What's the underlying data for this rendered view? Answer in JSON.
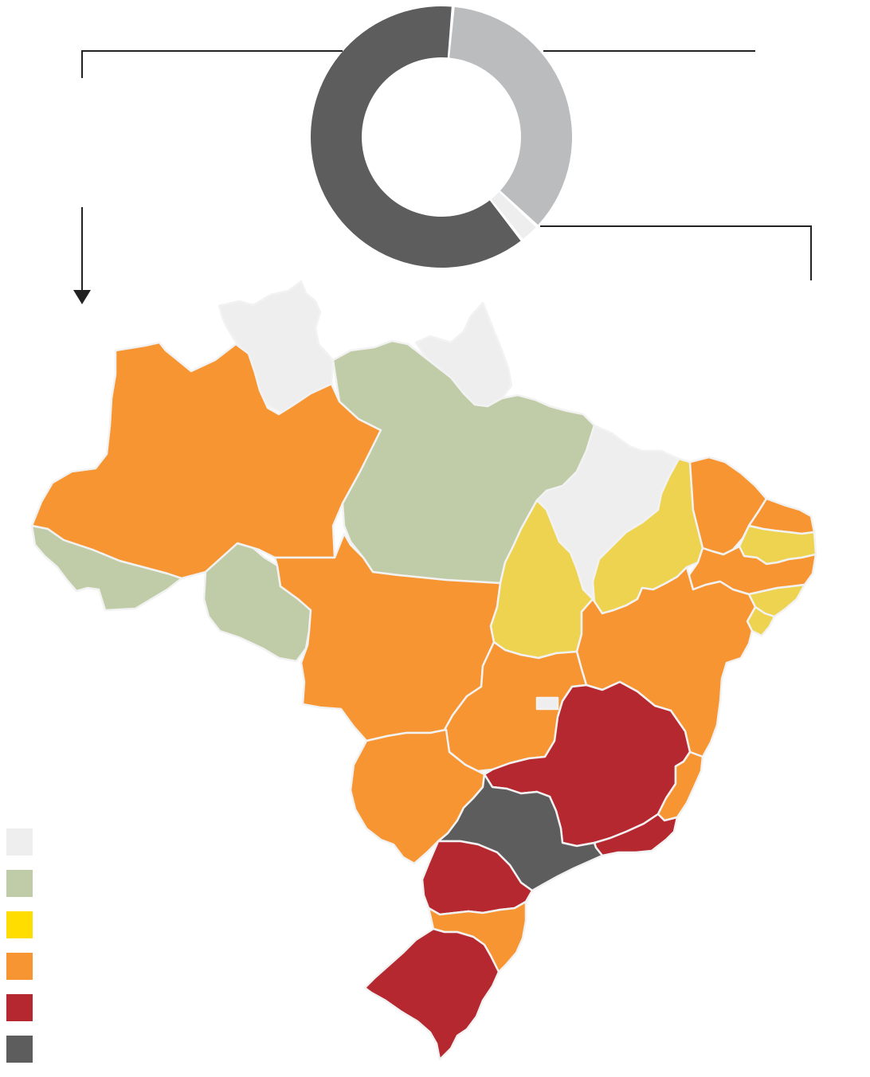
{
  "colors": {
    "background": "#ffffff",
    "state_border": "#f2f2f2",
    "connector": "#222222"
  },
  "donut": {
    "segments": [
      {
        "color": "#bbbcbe",
        "value": 35.5
      },
      {
        "color": "#eeeeee",
        "value": 2.5
      },
      {
        "color": "#5d5d5d",
        "value": 62.0
      }
    ]
  },
  "legend": {
    "items": [
      {
        "color": "#eeeeee",
        "label": ""
      },
      {
        "color": "#c0cca7",
        "label": ""
      },
      {
        "color": "#ffdd00",
        "label": ""
      },
      {
        "color": "#f79532",
        "label": ""
      },
      {
        "color": "#b62830",
        "label": ""
      },
      {
        "color": "#5d5d5d",
        "label": ""
      }
    ]
  },
  "map": {
    "states": [
      {
        "id": "AC",
        "category": 1
      },
      {
        "id": "AM",
        "category": 3
      },
      {
        "id": "RR",
        "category": 0
      },
      {
        "id": "PA",
        "category": 1
      },
      {
        "id": "AP",
        "category": 0
      },
      {
        "id": "RO",
        "category": 1
      },
      {
        "id": "MT",
        "category": 3
      },
      {
        "id": "TO",
        "category": 2
      },
      {
        "id": "MA",
        "category": 0
      },
      {
        "id": "PI",
        "category": 2
      },
      {
        "id": "CE",
        "category": 3
      },
      {
        "id": "RN",
        "category": 3
      },
      {
        "id": "PB",
        "category": 2
      },
      {
        "id": "PE",
        "category": 3
      },
      {
        "id": "AL",
        "category": 2
      },
      {
        "id": "SE",
        "category": 2
      },
      {
        "id": "BA",
        "category": 3
      },
      {
        "id": "GO",
        "category": 3
      },
      {
        "id": "DF",
        "category": 0
      },
      {
        "id": "MS",
        "category": 3
      },
      {
        "id": "MG",
        "category": 4
      },
      {
        "id": "ES",
        "category": 3
      },
      {
        "id": "RJ",
        "category": 4
      },
      {
        "id": "SP",
        "category": 5
      },
      {
        "id": "PR",
        "category": 4
      },
      {
        "id": "SC",
        "category": 3
      },
      {
        "id": "RS",
        "category": 4
      }
    ],
    "yellow_tone": "#edd34f"
  }
}
